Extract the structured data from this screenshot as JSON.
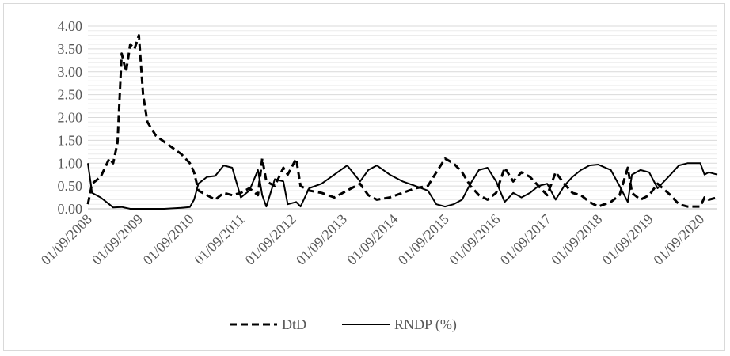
{
  "chart_data": {
    "type": "line",
    "title": "",
    "xlabel": "",
    "ylabel": "",
    "ylim": [
      0,
      4
    ],
    "y_ticks": [
      "0.00",
      "0.50",
      "1.00",
      "1.50",
      "2.00",
      "2.50",
      "3.00",
      "3.50",
      "4.00"
    ],
    "x_ticks": [
      "01/09/2008",
      "01/09/2009",
      "01/09/2010",
      "01/09/2011",
      "01/09/2012",
      "01/09/2013",
      "01/09/2014",
      "01/09/2015",
      "01/09/2016",
      "01/09/2017",
      "01/09/2018",
      "01/09/2019",
      "01/09/2020"
    ],
    "x_range": [
      "2008-09-01",
      "2021-01-01"
    ],
    "grid": "horizontal",
    "legend_position": "bottom",
    "series": [
      {
        "name": "DtD",
        "style": "dashed",
        "color": "#000000",
        "points": [
          [
            "2008-09-01",
            0.1
          ],
          [
            "2008-10-01",
            0.55
          ],
          [
            "2008-12-01",
            0.7
          ],
          [
            "2009-02-01",
            1.1
          ],
          [
            "2009-03-01",
            1.0
          ],
          [
            "2009-04-01",
            1.45
          ],
          [
            "2009-05-01",
            3.4
          ],
          [
            "2009-06-01",
            3.0
          ],
          [
            "2009-07-01",
            3.6
          ],
          [
            "2009-08-01",
            3.5
          ],
          [
            "2009-09-01",
            3.8
          ],
          [
            "2009-10-01",
            2.5
          ],
          [
            "2009-11-01",
            1.9
          ],
          [
            "2010-01-01",
            1.6
          ],
          [
            "2010-04-01",
            1.4
          ],
          [
            "2010-07-01",
            1.2
          ],
          [
            "2010-09-01",
            1.0
          ],
          [
            "2010-10-01",
            0.8
          ],
          [
            "2010-11-01",
            0.4
          ],
          [
            "2011-01-01",
            0.3
          ],
          [
            "2011-03-01",
            0.2
          ],
          [
            "2011-05-01",
            0.35
          ],
          [
            "2011-07-01",
            0.3
          ],
          [
            "2011-09-01",
            0.35
          ],
          [
            "2011-11-01",
            0.45
          ],
          [
            "2012-01-01",
            0.3
          ],
          [
            "2012-02-01",
            1.1
          ],
          [
            "2012-03-01",
            0.6
          ],
          [
            "2012-05-01",
            0.5
          ],
          [
            "2012-07-01",
            0.9
          ],
          [
            "2012-08-01",
            0.75
          ],
          [
            "2012-10-01",
            1.1
          ],
          [
            "2012-11-01",
            0.5
          ],
          [
            "2013-01-01",
            0.4
          ],
          [
            "2013-04-01",
            0.35
          ],
          [
            "2013-07-01",
            0.25
          ],
          [
            "2013-10-01",
            0.4
          ],
          [
            "2014-01-01",
            0.55
          ],
          [
            "2014-03-01",
            0.3
          ],
          [
            "2014-05-01",
            0.2
          ],
          [
            "2014-08-01",
            0.25
          ],
          [
            "2014-11-01",
            0.35
          ],
          [
            "2015-02-01",
            0.45
          ],
          [
            "2015-05-01",
            0.5
          ],
          [
            "2015-07-01",
            0.8
          ],
          [
            "2015-09-01",
            1.1
          ],
          [
            "2015-11-01",
            1.0
          ],
          [
            "2016-01-01",
            0.8
          ],
          [
            "2016-03-01",
            0.5
          ],
          [
            "2016-05-01",
            0.3
          ],
          [
            "2016-07-01",
            0.2
          ],
          [
            "2016-09-01",
            0.35
          ],
          [
            "2016-11-01",
            0.9
          ],
          [
            "2017-01-01",
            0.6
          ],
          [
            "2017-03-01",
            0.8
          ],
          [
            "2017-05-01",
            0.7
          ],
          [
            "2017-07-01",
            0.5
          ],
          [
            "2017-09-01",
            0.3
          ],
          [
            "2017-11-01",
            0.8
          ],
          [
            "2018-01-01",
            0.55
          ],
          [
            "2018-03-01",
            0.35
          ],
          [
            "2018-05-01",
            0.3
          ],
          [
            "2018-07-01",
            0.15
          ],
          [
            "2018-09-01",
            0.05
          ],
          [
            "2018-12-01",
            0.15
          ],
          [
            "2019-02-01",
            0.3
          ],
          [
            "2019-04-01",
            0.9
          ],
          [
            "2019-05-01",
            0.35
          ],
          [
            "2019-07-01",
            0.2
          ],
          [
            "2019-09-01",
            0.3
          ],
          [
            "2019-11-01",
            0.55
          ],
          [
            "2020-02-01",
            0.3
          ],
          [
            "2020-04-01",
            0.1
          ],
          [
            "2020-06-01",
            0.05
          ],
          [
            "2020-09-01",
            0.05
          ],
          [
            "2020-10-01",
            0.25
          ],
          [
            "2020-11-01",
            0.2
          ],
          [
            "2021-01-01",
            0.25
          ]
        ]
      },
      {
        "name": "RNDP (%)",
        "style": "solid",
        "color": "#000000",
        "points": [
          [
            "2008-09-01",
            1.0
          ],
          [
            "2008-10-01",
            0.35
          ],
          [
            "2008-12-01",
            0.25
          ],
          [
            "2009-02-01",
            0.1
          ],
          [
            "2009-03-01",
            0.03
          ],
          [
            "2009-05-01",
            0.04
          ],
          [
            "2009-07-01",
            0.0
          ],
          [
            "2010-03-01",
            0.0
          ],
          [
            "2010-07-01",
            0.02
          ],
          [
            "2010-09-01",
            0.04
          ],
          [
            "2010-10-01",
            0.2
          ],
          [
            "2010-11-01",
            0.55
          ],
          [
            "2011-01-01",
            0.7
          ],
          [
            "2011-03-01",
            0.72
          ],
          [
            "2011-05-01",
            0.95
          ],
          [
            "2011-07-01",
            0.9
          ],
          [
            "2011-09-01",
            0.25
          ],
          [
            "2011-11-01",
            0.4
          ],
          [
            "2012-01-01",
            0.85
          ],
          [
            "2012-02-01",
            0.3
          ],
          [
            "2012-03-01",
            0.05
          ],
          [
            "2012-05-01",
            0.65
          ],
          [
            "2012-07-01",
            0.6
          ],
          [
            "2012-08-01",
            0.1
          ],
          [
            "2012-10-01",
            0.15
          ],
          [
            "2012-11-01",
            0.05
          ],
          [
            "2013-01-01",
            0.45
          ],
          [
            "2013-04-01",
            0.55
          ],
          [
            "2013-07-01",
            0.75
          ],
          [
            "2013-10-01",
            0.95
          ],
          [
            "2014-01-01",
            0.6
          ],
          [
            "2014-03-01",
            0.85
          ],
          [
            "2014-05-01",
            0.95
          ],
          [
            "2014-08-01",
            0.75
          ],
          [
            "2014-11-01",
            0.6
          ],
          [
            "2015-02-01",
            0.5
          ],
          [
            "2015-05-01",
            0.4
          ],
          [
            "2015-07-01",
            0.1
          ],
          [
            "2015-09-01",
            0.05
          ],
          [
            "2015-11-01",
            0.1
          ],
          [
            "2016-01-01",
            0.2
          ],
          [
            "2016-03-01",
            0.55
          ],
          [
            "2016-05-01",
            0.85
          ],
          [
            "2016-07-01",
            0.9
          ],
          [
            "2016-09-01",
            0.6
          ],
          [
            "2016-11-01",
            0.15
          ],
          [
            "2017-01-01",
            0.35
          ],
          [
            "2017-03-01",
            0.25
          ],
          [
            "2017-05-01",
            0.35
          ],
          [
            "2017-07-01",
            0.5
          ],
          [
            "2017-09-01",
            0.55
          ],
          [
            "2017-11-01",
            0.2
          ],
          [
            "2018-01-01",
            0.5
          ],
          [
            "2018-03-01",
            0.7
          ],
          [
            "2018-05-01",
            0.85
          ],
          [
            "2018-07-01",
            0.95
          ],
          [
            "2018-09-01",
            0.97
          ],
          [
            "2018-12-01",
            0.85
          ],
          [
            "2019-02-01",
            0.5
          ],
          [
            "2019-04-01",
            0.15
          ],
          [
            "2019-05-01",
            0.75
          ],
          [
            "2019-07-01",
            0.85
          ],
          [
            "2019-09-01",
            0.8
          ],
          [
            "2019-11-01",
            0.45
          ],
          [
            "2020-02-01",
            0.75
          ],
          [
            "2020-04-01",
            0.95
          ],
          [
            "2020-06-01",
            1.0
          ],
          [
            "2020-09-01",
            1.0
          ],
          [
            "2020-10-01",
            0.75
          ],
          [
            "2020-11-01",
            0.8
          ],
          [
            "2021-01-01",
            0.75
          ]
        ]
      }
    ]
  }
}
